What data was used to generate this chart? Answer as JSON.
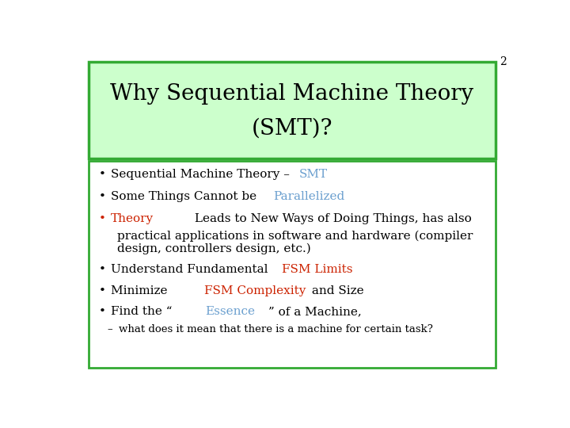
{
  "slide_number": "2",
  "title_line1": "Why Sequential Machine Theory",
  "title_line2": "(SMT)?",
  "title_bg_color": "#ccffcc",
  "title_border_color": "#33aa33",
  "content_border_color": "#33aa33",
  "background_color": "#ffffff",
  "bullet_items": [
    {
      "bullet": "•",
      "bullet_color": "#000000",
      "indent": 0,
      "segments": [
        {
          "text": "Sequential Machine Theory – ",
          "color": "#000000"
        },
        {
          "text": "SMT",
          "color": "#6a9fcf"
        }
      ]
    },
    {
      "bullet": "•",
      "bullet_color": "#000000",
      "indent": 0,
      "segments": [
        {
          "text": "Some Things Cannot be ",
          "color": "#000000"
        },
        {
          "text": "Parallelized",
          "color": "#6a9fcf"
        }
      ]
    },
    {
      "bullet": "•",
      "bullet_color": "#cc2200",
      "indent": 0,
      "segments": [
        {
          "text": "Theory",
          "color": "#cc2200"
        },
        {
          "text": " Leads to New Ways of Doing Things, has also",
          "color": "#000000"
        }
      ]
    },
    {
      "bullet": "",
      "bullet_color": "#000000",
      "indent": 1,
      "segments": [
        {
          "text": "practical applications in software and hardware (compiler",
          "color": "#000000"
        }
      ]
    },
    {
      "bullet": "",
      "bullet_color": "#000000",
      "indent": 1,
      "segments": [
        {
          "text": "design, controllers design, etc.)",
          "color": "#000000"
        }
      ]
    },
    {
      "bullet": "•",
      "bullet_color": "#000000",
      "indent": 0,
      "segments": [
        {
          "text": "Understand Fundamental ",
          "color": "#000000"
        },
        {
          "text": "FSM Limits",
          "color": "#cc2200"
        }
      ]
    },
    {
      "bullet": "•",
      "bullet_color": "#000000",
      "indent": 0,
      "segments": [
        {
          "text": "Minimize ",
          "color": "#000000"
        },
        {
          "text": "FSM Complexity",
          "color": "#cc2200"
        },
        {
          "text": " and Size",
          "color": "#000000"
        }
      ]
    },
    {
      "bullet": "•",
      "bullet_color": "#000000",
      "indent": 0,
      "segments": [
        {
          "text": "Find the “",
          "color": "#000000"
        },
        {
          "text": "Essence",
          "color": "#6a9fcf"
        },
        {
          "text": "” of a Machine,",
          "color": "#000000"
        }
      ]
    },
    {
      "bullet": "–",
      "bullet_color": "#000000",
      "indent": 2,
      "segments": [
        {
          "text": "what does it mean that there is a machine for certain task?",
          "color": "#000000"
        }
      ]
    }
  ],
  "title_fontsize": 20,
  "body_fontsize": 11,
  "sub_fontsize": 9.5,
  "slide_num_fontsize": 10,
  "font_family": "DejaVu Serif"
}
